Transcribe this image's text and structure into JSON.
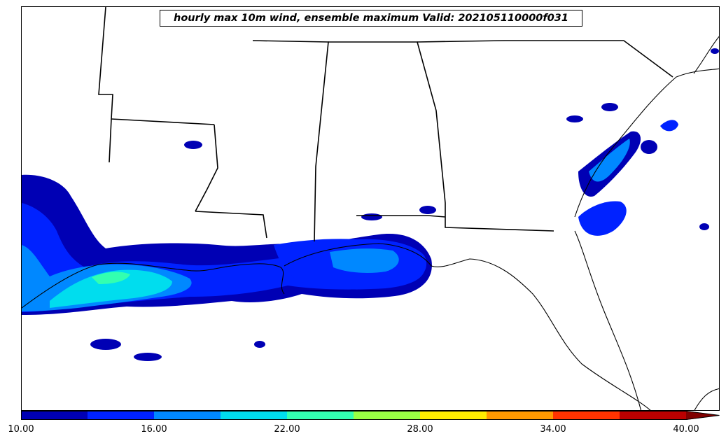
{
  "title": "hourly max 10m wind, ensemble maximum Valid: 202105110000f031",
  "colorbar": {
    "min": 10,
    "max": 40,
    "extend": "max",
    "ticks": [
      "10.00",
      "16.00",
      "22.00",
      "28.00",
      "34.00",
      "40.00"
    ],
    "levels": [
      10,
      13,
      16,
      19,
      22,
      25,
      28,
      31,
      34,
      37,
      40
    ],
    "colors": [
      "#0000b4",
      "#0022ff",
      "#0088ff",
      "#00ddee",
      "#33ffb0",
      "#99ff44",
      "#ffee00",
      "#ff9900",
      "#ff3300",
      "#bb0000"
    ],
    "extend_color": "#800000"
  }
}
